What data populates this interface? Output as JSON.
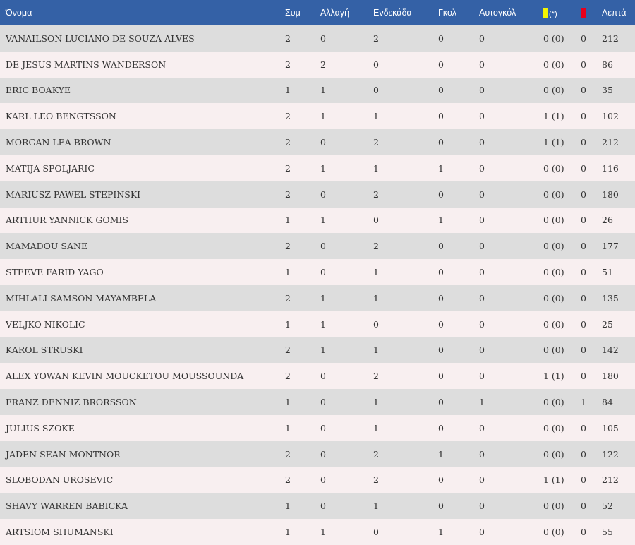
{
  "headers": {
    "name": "Όνομα",
    "appearances": "Συμ",
    "substitute": "Αλλαγή",
    "starting": "Ενδεκάδα",
    "goals": "Γκολ",
    "own_goals": "Αυτογκόλ",
    "yellow_suffix": "(*)",
    "minutes": "Λεπτά"
  },
  "colors": {
    "header_bg": "#3461a6",
    "row_odd": "#dddddd",
    "row_even": "#f8eff0",
    "yellow_card": "#f4f400",
    "red_card": "#e8001c"
  },
  "icons": {
    "yellow": "yellow-card-icon",
    "red": "red-card-icon"
  },
  "players": [
    {
      "name": "VANAILSON LUCIANO DE SOUZA ALVES",
      "apps": "2",
      "sub": "0",
      "start": "2",
      "goals": "0",
      "og": "0",
      "yellow": "0 (0)",
      "red": "0",
      "min": "212"
    },
    {
      "name": "DE JESUS MARTINS WANDERSON",
      "apps": "2",
      "sub": "2",
      "start": "0",
      "goals": "0",
      "og": "0",
      "yellow": "0 (0)",
      "red": "0",
      "min": "86"
    },
    {
      "name": "ERIC BOAKYE",
      "apps": "1",
      "sub": "1",
      "start": "0",
      "goals": "0",
      "og": "0",
      "yellow": "0 (0)",
      "red": "0",
      "min": "35"
    },
    {
      "name": "KARL LEO BENGTSSON",
      "apps": "2",
      "sub": "1",
      "start": "1",
      "goals": "0",
      "og": "0",
      "yellow": "1 (1)",
      "red": "0",
      "min": "102"
    },
    {
      "name": "MORGAN LEA BROWN",
      "apps": "2",
      "sub": "0",
      "start": "2",
      "goals": "0",
      "og": "0",
      "yellow": "1 (1)",
      "red": "0",
      "min": "212"
    },
    {
      "name": "MATIJA SPOLJARIC",
      "apps": "2",
      "sub": "1",
      "start": "1",
      "goals": "1",
      "og": "0",
      "yellow": "0 (0)",
      "red": "0",
      "min": "116"
    },
    {
      "name": "MARIUSZ PAWEL STEPINSKI",
      "apps": "2",
      "sub": "0",
      "start": "2",
      "goals": "0",
      "og": "0",
      "yellow": "0 (0)",
      "red": "0",
      "min": "180"
    },
    {
      "name": "ARTHUR YANNICK GOMIS",
      "apps": "1",
      "sub": "1",
      "start": "0",
      "goals": "1",
      "og": "0",
      "yellow": "0 (0)",
      "red": "0",
      "min": "26"
    },
    {
      "name": "MAMADOU SANE",
      "apps": "2",
      "sub": "0",
      "start": "2",
      "goals": "0",
      "og": "0",
      "yellow": "0 (0)",
      "red": "0",
      "min": "177"
    },
    {
      "name": "STEEVE FARID YAGO",
      "apps": "1",
      "sub": "0",
      "start": "1",
      "goals": "0",
      "og": "0",
      "yellow": "0 (0)",
      "red": "0",
      "min": "51"
    },
    {
      "name": "MIHLALI SAMSON MAYAMBELA",
      "apps": "2",
      "sub": "1",
      "start": "1",
      "goals": "0",
      "og": "0",
      "yellow": "0 (0)",
      "red": "0",
      "min": "135"
    },
    {
      "name": "VELJKO NIKOLIC",
      "apps": "1",
      "sub": "1",
      "start": "0",
      "goals": "0",
      "og": "0",
      "yellow": "0 (0)",
      "red": "0",
      "min": "25"
    },
    {
      "name": "KAROL STRUSKI",
      "apps": "2",
      "sub": "1",
      "start": "1",
      "goals": "0",
      "og": "0",
      "yellow": "0 (0)",
      "red": "0",
      "min": "142"
    },
    {
      "name": "ALEX YOWAN KEVIN MOUCKETOU MOUSSOUNDA",
      "apps": "2",
      "sub": "0",
      "start": "2",
      "goals": "0",
      "og": "0",
      "yellow": "1 (1)",
      "red": "0",
      "min": "180"
    },
    {
      "name": "FRANZ DENNIZ BRORSSON",
      "apps": "1",
      "sub": "0",
      "start": "1",
      "goals": "0",
      "og": "1",
      "yellow": "0 (0)",
      "red": "1",
      "min": "84"
    },
    {
      "name": "JULIUS SZOKE",
      "apps": "1",
      "sub": "0",
      "start": "1",
      "goals": "0",
      "og": "0",
      "yellow": "0 (0)",
      "red": "0",
      "min": "105"
    },
    {
      "name": "JADEN SEAN MONTNOR",
      "apps": "2",
      "sub": "0",
      "start": "2",
      "goals": "1",
      "og": "0",
      "yellow": "0 (0)",
      "red": "0",
      "min": "122"
    },
    {
      "name": "SLOBODAN UROSEVIC",
      "apps": "2",
      "sub": "0",
      "start": "2",
      "goals": "0",
      "og": "0",
      "yellow": "1 (1)",
      "red": "0",
      "min": "212"
    },
    {
      "name": "SHAVY WARREN BABICKA",
      "apps": "1",
      "sub": "0",
      "start": "1",
      "goals": "0",
      "og": "0",
      "yellow": "0 (0)",
      "red": "0",
      "min": "52"
    },
    {
      "name": "ARTSIOM SHUMANSKI",
      "apps": "1",
      "sub": "1",
      "start": "0",
      "goals": "1",
      "og": "0",
      "yellow": "0 (0)",
      "red": "0",
      "min": "55"
    }
  ]
}
